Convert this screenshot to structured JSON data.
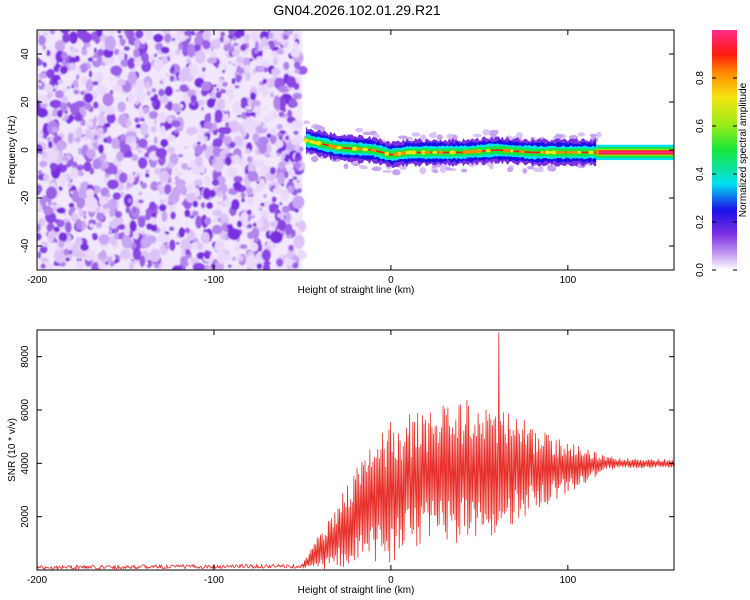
{
  "title": "GN04.2026.102.01.29.R21",
  "chart_data": [
    {
      "type": "heatmap",
      "name": "spectrogram",
      "xlabel": "Height of straight line (km)",
      "ylabel": "Frequency (Hz)",
      "xlim": [
        -200,
        160
      ],
      "ylim": [
        -50,
        50
      ],
      "x_ticks": [
        -200,
        -100,
        0,
        100
      ],
      "x_tick_labels": [
        "-200",
        "-100",
        "0",
        "100"
      ],
      "y_ticks": [
        -40,
        -20,
        0,
        20,
        40
      ],
      "y_tick_labels": [
        "-40",
        "-20",
        "0",
        "20",
        "40"
      ],
      "noise_region": {
        "x_range": [
          -200,
          -50
        ],
        "freq_range": [
          -50,
          50
        ]
      },
      "tone_track": {
        "x": [
          -48,
          -30,
          -10,
          0,
          10,
          25,
          40,
          60,
          80,
          100,
          115,
          160
        ],
        "freq": [
          4,
          1,
          0,
          -2,
          -1,
          -1,
          -1,
          0,
          -1,
          -1,
          -1,
          -1
        ]
      },
      "colorbar": {
        "label": "Normalized spectral amplitude",
        "range": [
          0,
          1
        ],
        "ticks": [
          0.0,
          0.2,
          0.4,
          0.6,
          0.8
        ],
        "tick_labels": [
          "0.0",
          "0.2",
          "0.4",
          "0.6",
          "0.8"
        ]
      }
    },
    {
      "type": "line",
      "name": "snr",
      "xlabel": "Height of straight line (km)",
      "ylabel": "SNR (10 * v/v)",
      "xlim": [
        -200,
        160
      ],
      "ylim": [
        0,
        9000
      ],
      "x_ticks": [
        -200,
        -100,
        0,
        100
      ],
      "x_tick_labels": [
        "-200",
        "-100",
        "0",
        "100"
      ],
      "y_ticks": [
        2000,
        4000,
        6000,
        8000
      ],
      "y_tick_labels": [
        "2000",
        "4000",
        "6000",
        "8000"
      ],
      "series": [
        {
          "name": "SNR",
          "color": "#e8302a",
          "envelope": {
            "x": [
              -200,
              -50,
              -35,
              -20,
              0,
              20,
              40,
              60,
              80,
              100,
              120,
              130,
              160
            ],
            "mean": [
              100,
              150,
              1000,
              2000,
              3000,
              3500,
              3700,
              3800,
              3800,
              3800,
              4000,
              4000,
              4000
            ],
            "amplitude": [
              80,
              80,
              1000,
              1800,
              2700,
              2500,
              2700,
              2500,
              1600,
              1000,
              300,
              200,
              150
            ]
          },
          "peak": {
            "x": 61,
            "y": 8900
          }
        }
      ]
    }
  ]
}
